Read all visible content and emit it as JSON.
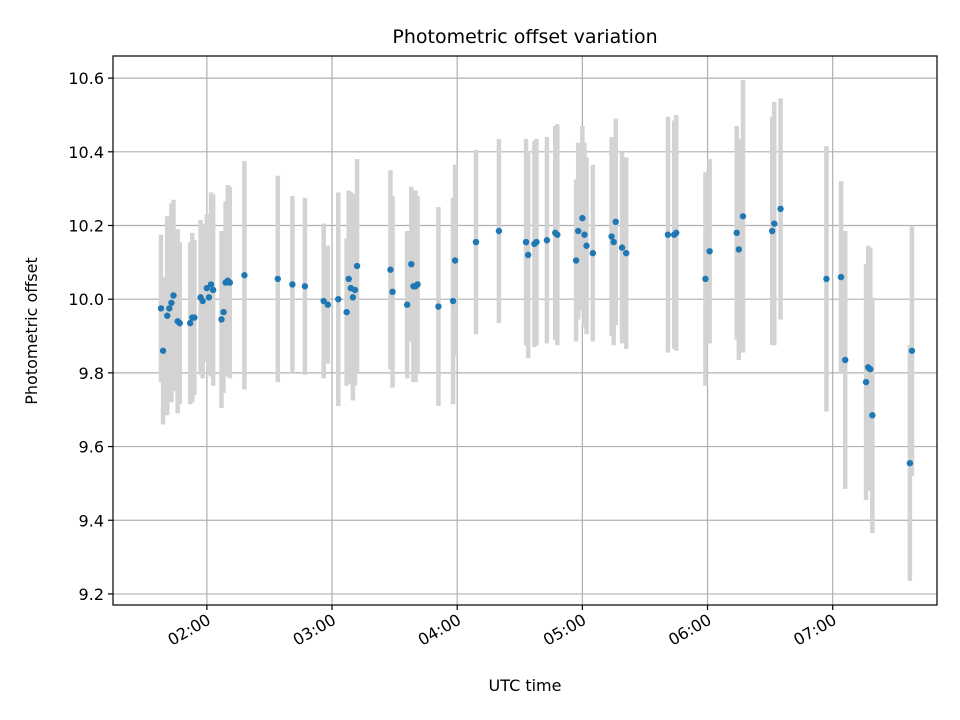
{
  "chart_data": {
    "type": "scatter",
    "title": "Photometric offset variation",
    "xlabel": "UTC time",
    "ylabel": "Photometric offset",
    "xlim": [
      "01:15",
      "07:50"
    ],
    "ylim": [
      9.17,
      10.66
    ],
    "xticks": [
      "02:00",
      "03:00",
      "04:00",
      "05:00",
      "06:00",
      "07:00"
    ],
    "yticks": [
      "9.2",
      "9.4",
      "9.6",
      "9.8",
      "10.0",
      "10.2",
      "10.4",
      "10.6"
    ],
    "grid": true,
    "colors": {
      "point": "#1f77b4",
      "errorbar": "#d3d3d3",
      "grid": "#b0b0b0"
    },
    "points": [
      {
        "t": "01:38",
        "y": 9.975,
        "err": 0.2
      },
      {
        "t": "01:39",
        "y": 9.86,
        "err": 0.2
      },
      {
        "t": "01:41",
        "y": 9.955,
        "err": 0.27
      },
      {
        "t": "01:42",
        "y": 9.975,
        "err": 0.2
      },
      {
        "t": "01:43",
        "y": 9.99,
        "err": 0.27
      },
      {
        "t": "01:44",
        "y": 10.01,
        "err": 0.26
      },
      {
        "t": "01:46",
        "y": 9.94,
        "err": 0.25
      },
      {
        "t": "01:47",
        "y": 9.935,
        "err": 0.22
      },
      {
        "t": "01:52",
        "y": 9.935,
        "err": 0.22
      },
      {
        "t": "01:53",
        "y": 9.95,
        "err": 0.23
      },
      {
        "t": "01:54",
        "y": 9.95,
        "err": 0.21
      },
      {
        "t": "01:57",
        "y": 10.005,
        "err": 0.21
      },
      {
        "t": "01:58",
        "y": 9.995,
        "err": 0.21
      },
      {
        "t": "02:00",
        "y": 10.03,
        "err": 0.2
      },
      {
        "t": "02:01",
        "y": 10.005,
        "err": 0.21
      },
      {
        "t": "02:02",
        "y": 10.04,
        "err": 0.25
      },
      {
        "t": "02:03",
        "y": 10.025,
        "err": 0.26
      },
      {
        "t": "02:07",
        "y": 9.945,
        "err": 0.24
      },
      {
        "t": "02:08",
        "y": 9.965,
        "err": 0.22
      },
      {
        "t": "02:09",
        "y": 10.045,
        "err": 0.22
      },
      {
        "t": "02:10",
        "y": 10.05,
        "err": 0.26
      },
      {
        "t": "02:11",
        "y": 10.045,
        "err": 0.26
      },
      {
        "t": "02:18",
        "y": 10.065,
        "err": 0.31
      },
      {
        "t": "02:34",
        "y": 10.055,
        "err": 0.28
      },
      {
        "t": "02:41",
        "y": 10.04,
        "err": 0.24
      },
      {
        "t": "02:47",
        "y": 10.035,
        "err": 0.24
      },
      {
        "t": "02:56",
        "y": 9.995,
        "err": 0.21
      },
      {
        "t": "02:58",
        "y": 9.985,
        "err": 0.16
      },
      {
        "t": "03:03",
        "y": 10.0,
        "err": 0.29
      },
      {
        "t": "03:07",
        "y": 9.965,
        "err": 0.2
      },
      {
        "t": "03:08",
        "y": 10.055,
        "err": 0.24
      },
      {
        "t": "03:09",
        "y": 10.03,
        "err": 0.26
      },
      {
        "t": "03:10",
        "y": 10.005,
        "err": 0.28
      },
      {
        "t": "03:11",
        "y": 10.025,
        "err": 0.26
      },
      {
        "t": "03:12",
        "y": 10.09,
        "err": 0.29
      },
      {
        "t": "03:28",
        "y": 10.08,
        "err": 0.27
      },
      {
        "t": "03:29",
        "y": 10.02,
        "err": 0.26
      },
      {
        "t": "03:36",
        "y": 9.985,
        "err": 0.2
      },
      {
        "t": "03:38",
        "y": 10.095,
        "err": 0.21
      },
      {
        "t": "03:39",
        "y": 10.035,
        "err": 0.26
      },
      {
        "t": "03:40",
        "y": 10.035,
        "err": 0.26
      },
      {
        "t": "03:41",
        "y": 10.04,
        "err": 0.24
      },
      {
        "t": "03:51",
        "y": 9.98,
        "err": 0.27
      },
      {
        "t": "03:58",
        "y": 9.995,
        "err": 0.28
      },
      {
        "t": "03:59",
        "y": 10.105,
        "err": 0.26
      },
      {
        "t": "04:09",
        "y": 10.155,
        "err": 0.25
      },
      {
        "t": "04:20",
        "y": 10.185,
        "err": 0.25
      },
      {
        "t": "04:33",
        "y": 10.155,
        "err": 0.28
      },
      {
        "t": "04:34",
        "y": 10.12,
        "err": 0.28
      },
      {
        "t": "04:37",
        "y": 10.15,
        "err": 0.28
      },
      {
        "t": "04:38",
        "y": 10.155,
        "err": 0.28
      },
      {
        "t": "04:43",
        "y": 10.16,
        "err": 0.28
      },
      {
        "t": "04:47",
        "y": 10.18,
        "err": 0.29
      },
      {
        "t": "04:48",
        "y": 10.175,
        "err": 0.3
      },
      {
        "t": "04:57",
        "y": 10.105,
        "err": 0.22
      },
      {
        "t": "04:58",
        "y": 10.185,
        "err": 0.24
      },
      {
        "t": "05:00",
        "y": 10.22,
        "err": 0.25
      },
      {
        "t": "05:01",
        "y": 10.175,
        "err": 0.25
      },
      {
        "t": "05:02",
        "y": 10.145,
        "err": 0.24
      },
      {
        "t": "05:05",
        "y": 10.125,
        "err": 0.24
      },
      {
        "t": "05:14",
        "y": 10.17,
        "err": 0.27
      },
      {
        "t": "05:15",
        "y": 10.155,
        "err": 0.28
      },
      {
        "t": "05:16",
        "y": 10.21,
        "err": 0.28
      },
      {
        "t": "05:19",
        "y": 10.14,
        "err": 0.26
      },
      {
        "t": "05:21",
        "y": 10.125,
        "err": 0.26
      },
      {
        "t": "05:41",
        "y": 10.175,
        "err": 0.32
      },
      {
        "t": "05:44",
        "y": 10.175,
        "err": 0.31
      },
      {
        "t": "05:45",
        "y": 10.18,
        "err": 0.32
      },
      {
        "t": "05:59",
        "y": 10.055,
        "err": 0.29
      },
      {
        "t": "06:01",
        "y": 10.13,
        "err": 0.25
      },
      {
        "t": "06:14",
        "y": 10.18,
        "err": 0.29
      },
      {
        "t": "06:15",
        "y": 10.135,
        "err": 0.3
      },
      {
        "t": "06:17",
        "y": 10.225,
        "err": 0.37
      },
      {
        "t": "06:31",
        "y": 10.185,
        "err": 0.31
      },
      {
        "t": "06:32",
        "y": 10.205,
        "err": 0.33
      },
      {
        "t": "06:35",
        "y": 10.245,
        "err": 0.3
      },
      {
        "t": "06:57",
        "y": 10.055,
        "err": 0.36
      },
      {
        "t": "07:04",
        "y": 10.06,
        "err": 0.26
      },
      {
        "t": "07:06",
        "y": 9.835,
        "err": 0.35
      },
      {
        "t": "07:16",
        "y": 9.775,
        "err": 0.32
      },
      {
        "t": "07:17",
        "y": 9.815,
        "err": 0.33
      },
      {
        "t": "07:18",
        "y": 9.81,
        "err": 0.33
      },
      {
        "t": "07:19",
        "y": 9.685,
        "err": 0.32
      },
      {
        "t": "07:37",
        "y": 9.555,
        "err": 0.32
      },
      {
        "t": "07:38",
        "y": 9.86,
        "err": 0.34
      }
    ]
  }
}
